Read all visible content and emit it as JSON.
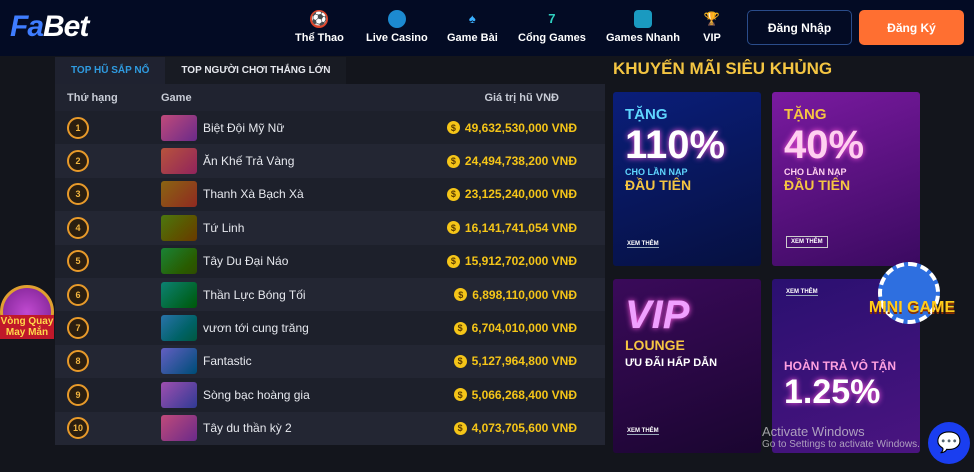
{
  "header": {
    "logo_a": "Fa",
    "logo_b": "Bet",
    "nav": [
      {
        "label": "Thể Thao",
        "icon": "soccer-ball-icon"
      },
      {
        "label": "Live Casino",
        "icon": "shield-icon"
      },
      {
        "label": "Game Bài",
        "icon": "spade-icon"
      },
      {
        "label": "Cổng Games",
        "icon": "seven-icon"
      },
      {
        "label": "Games Nhanh",
        "icon": "cube-icon"
      },
      {
        "label": "VIP",
        "icon": "trophy-icon"
      }
    ],
    "login": "Đăng Nhập",
    "register": "Đăng Ký"
  },
  "colors": {
    "accent": "#ff6f31",
    "tab_active": "#2f9be0",
    "gold": "#f5c518",
    "header_bg": "#030b24"
  },
  "jackpot": {
    "tabs": [
      "TOP HŨ SẮP NỔ",
      "TOP NGƯỜI CHƠI THẮNG LỚN"
    ],
    "columns": [
      "Thứ hạng",
      "Game",
      "Giá trị hũ VNĐ"
    ],
    "rows": [
      {
        "rank": "1",
        "game": "Biệt Đội Mỹ Nữ",
        "value": "49,632,530,000 VNĐ"
      },
      {
        "rank": "2",
        "game": "Ăn Khế Trả Vàng",
        "value": "24,494,738,200 VNĐ"
      },
      {
        "rank": "3",
        "game": "Thanh Xà Bạch Xà",
        "value": "23,125,240,000 VNĐ"
      },
      {
        "rank": "4",
        "game": "Tứ Linh",
        "value": "16,141,741,054 VNĐ"
      },
      {
        "rank": "5",
        "game": "Tây Du Đại Náo",
        "value": "15,912,702,000 VNĐ"
      },
      {
        "rank": "6",
        "game": "Thần Lực Bóng Tối",
        "value": "6,898,110,000 VNĐ"
      },
      {
        "rank": "7",
        "game": "vươn tới cung trăng",
        "value": "6,704,010,000 VNĐ"
      },
      {
        "rank": "8",
        "game": "Fantastic",
        "value": "5,127,964,800 VNĐ"
      },
      {
        "rank": "9",
        "game": "Sòng bạc hoàng gia",
        "value": "5,066,268,400 VNĐ"
      },
      {
        "rank": "10",
        "game": "Tây du thần kỳ 2",
        "value": "4,073,705,600 VNĐ"
      }
    ]
  },
  "promo": {
    "title": "KHUYẾN MÃI SIÊU KHỦNG",
    "cards": [
      {
        "line1": "TẶNG",
        "big": "110%",
        "line2": "CHO LẦN NẠP",
        "line3": "ĐẦU TIÊN",
        "more": "XEM THÊM"
      },
      {
        "line1": "TẶNG",
        "big": "40%",
        "line2": "CHO LẦN NẠP",
        "line3": "ĐẦU TIÊN",
        "more": "XEM THÊM"
      },
      {
        "line1": "LOUNGE",
        "big": "VIP",
        "line2": "ƯU ĐÃI HẤP DẪN",
        "more": "XEM THÊM"
      },
      {
        "line1": "HOÀN TRẢ VÔ TẬN",
        "big": "1.25%",
        "more": "XEM THÊM"
      }
    ]
  },
  "floating": {
    "wheel": "Vòng Quay May Mắn",
    "minigame": "MINI GAME"
  },
  "watermark": {
    "line1": "Activate Windows",
    "line2": "Go to Settings to activate Windows."
  }
}
